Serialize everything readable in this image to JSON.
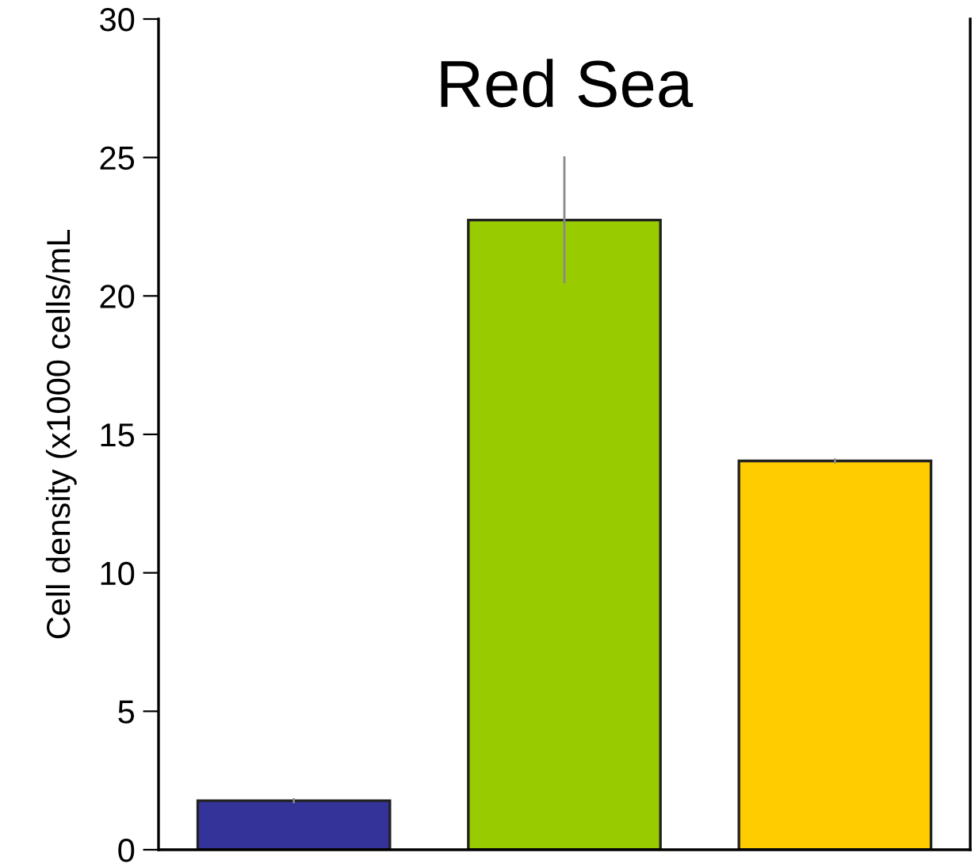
{
  "chart_data": {
    "type": "bar",
    "title": "Red Sea",
    "ylabel": "Cell density (x1000 cells/mL",
    "categories": [
      null,
      null,
      null
    ],
    "values": [
      1.77,
      22.74,
      14.04
    ],
    "colors": [
      "#333399",
      "#99cc00",
      "#ffcc00"
    ],
    "errors": [
      0.05,
      [
        20.5,
        25.0
      ],
      0.05
    ],
    "ylim": [
      0,
      30
    ],
    "yticks": [
      0,
      5,
      10,
      15,
      20,
      25,
      30
    ],
    "grid": false,
    "legend": false
  }
}
